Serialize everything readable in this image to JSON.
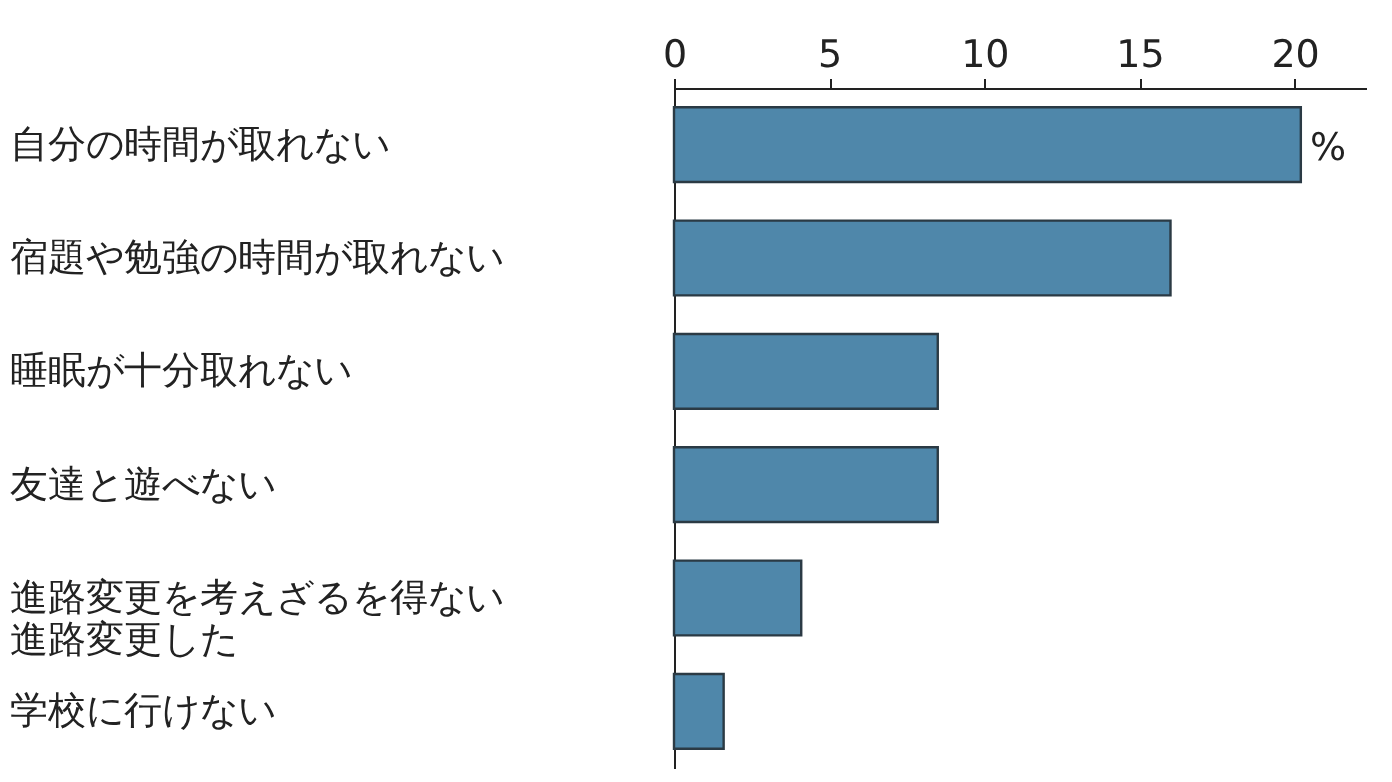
{
  "chart_data": {
    "type": "bar",
    "orientation": "horizontal",
    "categories": [
      "自分の時間が取れない",
      "宿題や勉強の時間が取れない",
      "睡眠が十分取れない",
      "友達と遊べない",
      "進路変更を考えざるを得ない進路変更した",
      "学校に行けない"
    ],
    "values": [
      20.2,
      16.0,
      8.5,
      8.5,
      4.1,
      1.6
    ],
    "color": "#4f87aa",
    "xlim": [
      0,
      22.3
    ],
    "xticks": [
      0,
      5,
      10,
      15,
      20
    ],
    "grid": false,
    "annotations": [
      "%"
    ]
  }
}
